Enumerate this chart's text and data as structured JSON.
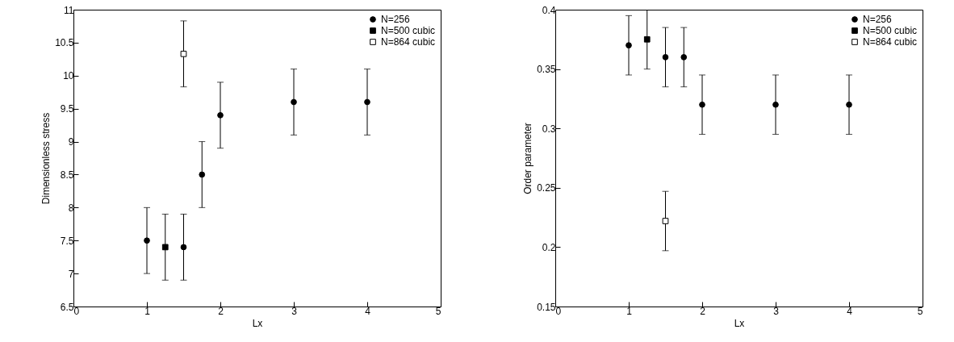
{
  "chart_data": [
    {
      "type": "scatter",
      "xlabel": "Lx",
      "ylabel": "Dimensionless stress",
      "xlim": [
        0,
        5
      ],
      "ylim": [
        6.5,
        11
      ],
      "xticks": [
        0,
        1,
        2,
        3,
        4,
        5
      ],
      "yticks": [
        6.5,
        7,
        7.5,
        8,
        8.5,
        9,
        9.5,
        10,
        10.5,
        11
      ],
      "grid": false,
      "legend": "top right",
      "series": [
        {
          "name": "N=256",
          "color": "#000000",
          "marker": "circle",
          "x": [
            1,
            1.5,
            1.75,
            2,
            3,
            4
          ],
          "values": [
            7.5,
            7.4,
            8.5,
            9.4,
            9.6,
            9.6
          ],
          "errors": [
            0.5,
            0.5,
            0.5,
            0.5,
            0.5,
            0.5
          ]
        },
        {
          "name": "N=500 cubic",
          "color": "#000000",
          "marker": "square",
          "x": [
            1.25
          ],
          "values": [
            7.4
          ],
          "errors": [
            0.5
          ]
        },
        {
          "name": "N=864 cubic",
          "color": "#ffffff",
          "marker": "square",
          "x": [
            1.5
          ],
          "values": [
            10.33
          ],
          "errors": [
            0.5
          ]
        }
      ]
    },
    {
      "type": "scatter",
      "xlabel": "Lx",
      "ylabel": "Order parameter",
      "xlim": [
        0,
        5
      ],
      "ylim": [
        0.15,
        0.4
      ],
      "xticks": [
        0,
        1,
        2,
        3,
        4,
        5
      ],
      "yticks": [
        0.15,
        0.2,
        0.25,
        0.3,
        0.35,
        0.4
      ],
      "grid": false,
      "legend": "top right",
      "series": [
        {
          "name": "N=256",
          "color": "#000000",
          "marker": "circle",
          "x": [
            1,
            1.5,
            1.75,
            2,
            3,
            4
          ],
          "values": [
            0.37,
            0.36,
            0.36,
            0.32,
            0.32,
            0.32
          ],
          "errors": [
            0.025,
            0.025,
            0.025,
            0.025,
            0.025,
            0.025
          ]
        },
        {
          "name": "N=500 cubic",
          "color": "#000000",
          "marker": "square",
          "x": [
            1.25
          ],
          "values": [
            0.375
          ],
          "errors": [
            0.025
          ]
        },
        {
          "name": "N=864 cubic",
          "color": "#ffffff",
          "marker": "square",
          "x": [
            1.5
          ],
          "values": [
            0.222
          ],
          "errors": [
            0.025
          ]
        }
      ]
    }
  ]
}
